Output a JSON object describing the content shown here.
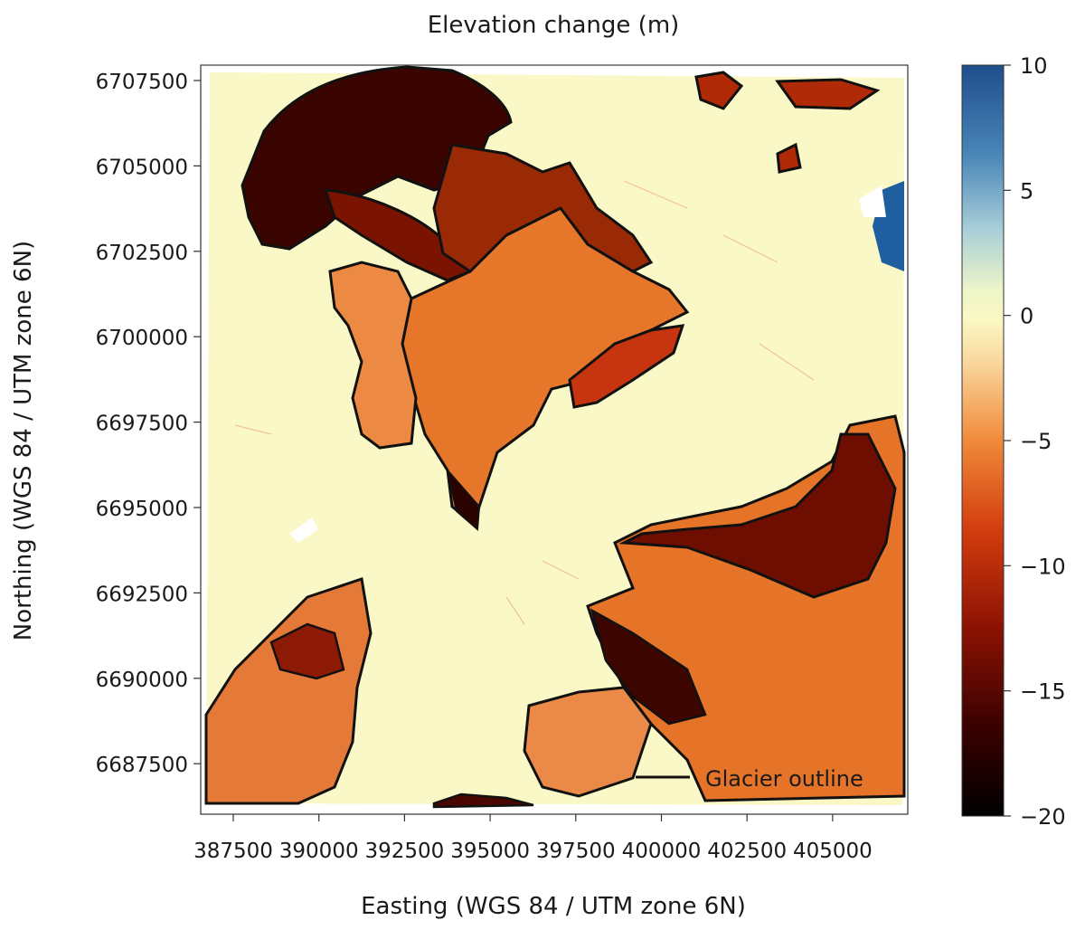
{
  "figure": {
    "title": "Elevation change (m)",
    "xlabel": "Easting (WGS 84 / UTM zone 6N)",
    "ylabel": "Northing (WGS 84 / UTM zone 6N)",
    "x_ticks": [
      "387500",
      "390000",
      "392500",
      "395000",
      "397500",
      "400000",
      "402500",
      "405000"
    ],
    "y_ticks": [
      "6707500",
      "6705000",
      "6702500",
      "6700000",
      "6697500",
      "6695000",
      "6692500",
      "6690000",
      "6687500"
    ],
    "legend": {
      "label": "Glacier outline",
      "placement": "lower-right"
    },
    "colorbar": {
      "ticks": [
        "10",
        "5",
        "0",
        "−5",
        "−10",
        "−15",
        "−20"
      ],
      "min": -20,
      "max": 10,
      "colormap": "RdYlBu-like (black-red-orange-yellow-blue)"
    },
    "colors": {
      "background": "#faf8c6",
      "outline": "#111111",
      "deep_loss": "#2a0000",
      "strong_loss": "#8a1a00",
      "moderate_loss": "#e26a1e",
      "light_loss": "#f6b27a",
      "gain": "#1f5fa0"
    }
  }
}
